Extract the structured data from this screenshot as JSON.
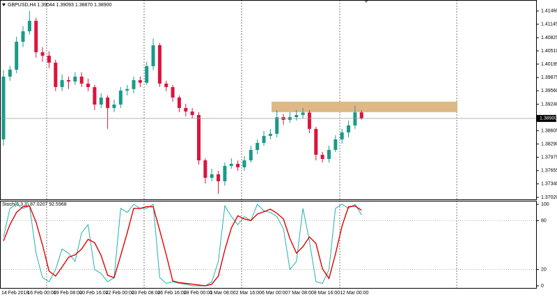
{
  "chart_data": [
    {
      "type": "candlestick",
      "title": "GBPUSD,H4  1.39044 1.39093 1.38870 1.38900",
      "categories": [
        "14 Feb 2018",
        null,
        null,
        null,
        "16 Feb 00:00",
        null,
        null,
        null,
        "19 Feb 08:00",
        null,
        null,
        null,
        "20 Feb 16:00",
        null,
        null,
        null,
        "22 Feb 00:00",
        null,
        null,
        null,
        "23 Feb 08:00",
        null,
        null,
        null,
        "26 Feb 16:00",
        null,
        null,
        null,
        "28 Feb 00:00",
        null,
        null,
        null,
        "1 Mar 08:00",
        null,
        null,
        null,
        "2 Mar 16:00",
        null,
        null,
        null,
        "6 Mar 00:00",
        null,
        null,
        null,
        "7 Mar 08:00",
        null,
        null,
        null,
        "8 Mar 16:00",
        null,
        null,
        null,
        "12 Mar 00:00",
        null,
        null,
        null
      ],
      "open": [
        1.384,
        1.39897,
        1.40063,
        1.40728,
        1.40978,
        1.41227,
        1.40479,
        1.40396,
        1.40229,
        1.39647,
        1.39814,
        1.3978,
        1.39897,
        1.3973,
        1.39647,
        1.39231,
        1.39398,
        1.39149,
        1.39231,
        1.39564,
        1.396,
        1.39814,
        1.3975,
        1.40146,
        1.40645,
        1.3973,
        1.39647,
        1.39398,
        1.39149,
        1.39065,
        1.38982,
        1.37901,
        1.37485,
        1.37568,
        1.37402,
        1.37768,
        1.37818,
        1.37735,
        1.37901,
        1.3815,
        1.38317,
        1.38483,
        1.38533,
        1.3893,
        1.38866,
        1.38932,
        1.38982,
        1.3904,
        1.3865,
        1.38034,
        1.37934,
        1.3815,
        1.384,
        1.38566,
        1.38733,
        1.39044
      ],
      "high": [
        1.4005,
        1.4015,
        1.4085,
        1.411,
        1.4146,
        1.413,
        1.406,
        1.405,
        1.403,
        1.3995,
        1.399,
        1.4,
        1.4,
        1.3985,
        1.397,
        1.395,
        1.3945,
        1.3935,
        1.3965,
        1.397,
        1.399,
        1.399,
        1.4025,
        1.408,
        1.407,
        1.398,
        1.397,
        1.3945,
        1.3925,
        1.3915,
        1.3905,
        1.3795,
        1.377,
        1.3765,
        1.3785,
        1.3795,
        1.379,
        1.38,
        1.3825,
        1.384,
        1.386,
        1.3865,
        1.391,
        1.39,
        1.3905,
        1.391,
        1.3915,
        1.391,
        1.387,
        1.381,
        1.3825,
        1.385,
        1.3865,
        1.3885,
        1.392,
        1.39093
      ],
      "low": [
        1.3825,
        1.398,
        1.3998,
        1.406,
        1.409,
        1.4035,
        1.4025,
        1.401,
        1.3955,
        1.3955,
        1.396,
        1.397,
        1.3965,
        1.3955,
        1.391,
        1.3915,
        1.3865,
        1.3905,
        1.3915,
        1.3945,
        1.395,
        1.3965,
        1.397,
        1.4005,
        1.3965,
        1.3955,
        1.393,
        1.3905,
        1.3895,
        1.389,
        1.378,
        1.3735,
        1.374,
        1.371,
        1.373,
        1.377,
        1.3765,
        1.3765,
        1.3785,
        1.3805,
        1.3825,
        1.384,
        1.3845,
        1.3875,
        1.388,
        1.3885,
        1.389,
        1.3855,
        1.379,
        1.3785,
        1.3785,
        1.381,
        1.383,
        1.3845,
        1.3865,
        1.3887
      ],
      "close": [
        1.39897,
        1.40063,
        1.40728,
        1.40978,
        1.41227,
        1.40479,
        1.40396,
        1.40229,
        1.39647,
        1.39814,
        1.3978,
        1.39897,
        1.3973,
        1.39647,
        1.39231,
        1.39398,
        1.39149,
        1.39231,
        1.39564,
        1.396,
        1.39814,
        1.3975,
        1.40146,
        1.40645,
        1.3973,
        1.39647,
        1.39398,
        1.39149,
        1.39065,
        1.38982,
        1.37901,
        1.37485,
        1.37568,
        1.37402,
        1.37768,
        1.37818,
        1.37735,
        1.37901,
        1.3815,
        1.38317,
        1.38483,
        1.38533,
        1.3893,
        1.38866,
        1.38932,
        1.38982,
        1.3904,
        1.3865,
        1.38034,
        1.37934,
        1.3815,
        1.384,
        1.38566,
        1.38733,
        1.39044,
        1.389
      ],
      "up_color": "#1a9a8a",
      "down_color": "#dc143c",
      "ylim": [
        1.3697,
        1.4169
      ],
      "yticks": [
        {
          "value": 1.4146,
          "label": "1.41460"
        },
        {
          "value": 1.41145,
          "label": "1.41145"
        },
        {
          "value": 1.40825,
          "label": "1.40825"
        },
        {
          "value": 1.4051,
          "label": "1.40510"
        },
        {
          "value": 1.40195,
          "label": "1.40195"
        },
        {
          "value": 1.39875,
          "label": "1.39875"
        },
        {
          "value": 1.3956,
          "label": "1.39560"
        },
        {
          "value": 1.3924,
          "label": "1.39240"
        },
        {
          "value": 1.38605,
          "label": "1.38605"
        },
        {
          "value": 1.3829,
          "label": "1.38290"
        },
        {
          "value": 1.37975,
          "label": "1.37975"
        },
        {
          "value": 1.37655,
          "label": "1.37655"
        },
        {
          "value": 1.3734,
          "label": "1.37340"
        },
        {
          "value": 1.3702,
          "label": "1.37020"
        }
      ],
      "current_price": {
        "value": 1.389,
        "label": "1.38900"
      },
      "zone": [
        1.3905,
        1.393
      ],
      "zone_color": "#deb887"
    },
    {
      "type": "line",
      "title": "Stoch(5,3,3) 87.0207 92.5968",
      "series": [
        {
          "color": "#20b2aa",
          "values": [
            60,
            95,
            100,
            95,
            98,
            40,
            10,
            5,
            20,
            45,
            40,
            30,
            65,
            75,
            20,
            15,
            5,
            10,
            95,
            90,
            100,
            95,
            95,
            100,
            10,
            3,
            5,
            3,
            2,
            0,
            0,
            0,
            5,
            30,
            98,
            85,
            75,
            85,
            80,
            100,
            92,
            90,
            85,
            70,
            20,
            30,
            95,
            55,
            5,
            3,
            20,
            95,
            100,
            95,
            100,
            87.0207
          ]
        },
        {
          "color": "#e00000",
          "values": [
            55,
            75,
            90,
            97,
            98,
            78,
            50,
            18,
            12,
            23,
            35,
            38,
            45,
            57,
            53,
            37,
            13,
            10,
            37,
            65,
            95,
            95,
            97,
            97,
            68,
            38,
            6,
            4,
            3,
            2,
            1,
            0,
            2,
            12,
            44,
            71,
            86,
            82,
            80,
            88,
            91,
            94,
            89,
            82,
            58,
            40,
            48,
            60,
            52,
            21,
            9,
            39,
            73,
            97,
            98,
            92.5968
          ]
        }
      ],
      "ylim": [
        -2.6,
        104.3
      ],
      "yticks": [
        100,
        80,
        20,
        0
      ],
      "levels": [
        80,
        20
      ]
    }
  ]
}
